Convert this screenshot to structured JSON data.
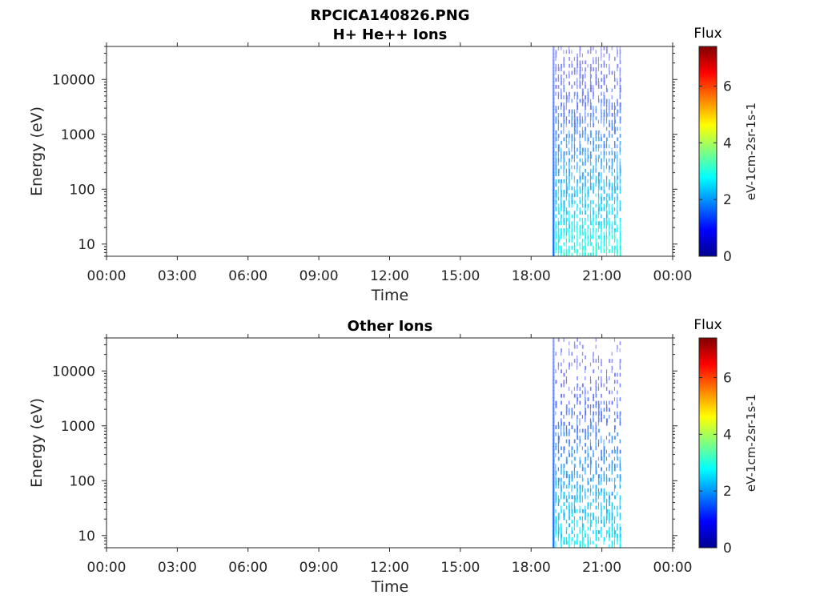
{
  "figure_title": "RPCICA140826.PNG",
  "colormap": [
    "#00008f",
    "#0000ff",
    "#0080ff",
    "#00ffff",
    "#80ff80",
    "#ffff00",
    "#ff8000",
    "#ff0000",
    "#800000"
  ],
  "chart_data": [
    {
      "type": "heatmap",
      "title": "H+ He++ Ions",
      "xlabel": "Time",
      "ylabel": "Energy (eV)",
      "x_tick_labels": [
        "00:00",
        "03:00",
        "06:00",
        "09:00",
        "12:00",
        "15:00",
        "18:00",
        "21:00",
        "00:00"
      ],
      "x_tick_hours": [
        0,
        3,
        6,
        9,
        12,
        15,
        18,
        21,
        24
      ],
      "xlim_hours": [
        0,
        24
      ],
      "y_scale": "log",
      "ylim": [
        6,
        40000
      ],
      "y_ticks": [
        10,
        100,
        1000,
        10000
      ],
      "y_tick_labels": [
        "10",
        "100",
        "1000",
        "10000"
      ],
      "data_time_range_hours": [
        18.9,
        21.85
      ],
      "energy_range_ev": [
        6,
        40000
      ],
      "colorbar": {
        "title": "Flux",
        "label": "eV-1cm-2sr-1s-1",
        "range": [
          0,
          7.4
        ],
        "ticks": [
          0,
          2,
          4,
          6
        ]
      }
    },
    {
      "type": "heatmap",
      "title": "Other Ions",
      "xlabel": "Time",
      "ylabel": "Energy (eV)",
      "x_tick_labels": [
        "00:00",
        "03:00",
        "06:00",
        "09:00",
        "12:00",
        "15:00",
        "18:00",
        "21:00",
        "00:00"
      ],
      "x_tick_hours": [
        0,
        3,
        6,
        9,
        12,
        15,
        18,
        21,
        24
      ],
      "xlim_hours": [
        0,
        24
      ],
      "y_scale": "log",
      "ylim": [
        6,
        40000
      ],
      "y_ticks": [
        10,
        100,
        1000,
        10000
      ],
      "y_tick_labels": [
        "10",
        "100",
        "1000",
        "10000"
      ],
      "data_time_range_hours": [
        18.9,
        21.85
      ],
      "energy_range_ev": [
        6,
        40000
      ],
      "colorbar": {
        "title": "Flux",
        "label": "eV-1cm-2sr-1s-1",
        "range": [
          0,
          7.4
        ],
        "ticks": [
          0,
          2,
          4,
          6
        ]
      }
    }
  ]
}
